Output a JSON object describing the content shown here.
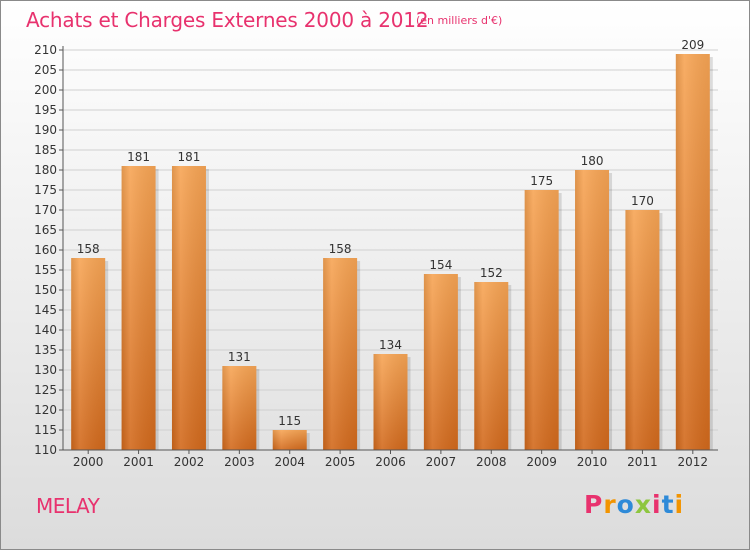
{
  "header": {
    "title": "Achats et Charges Externes 2000 à 2012",
    "unit": "(en milliers d'€)"
  },
  "footer": {
    "town": "MELAY",
    "logo": "Proxiti"
  },
  "colors": {
    "title": "#e8326e",
    "bar_light": "#f7a555",
    "bar_dark": "#d2691c",
    "grid": "#d0d0d0",
    "logo_letters": [
      "#e8326e",
      "#f29400",
      "#2e8ad8",
      "#8dc63f",
      "#e8326e",
      "#2e8ad8",
      "#f29400"
    ]
  },
  "chart_data": {
    "type": "bar",
    "title": "Achats et Charges Externes 2000 à 2012",
    "subtitle": "(en milliers d'€)",
    "xlabel": "",
    "ylabel": "",
    "categories": [
      "2000",
      "2001",
      "2002",
      "2003",
      "2004",
      "2005",
      "2006",
      "2007",
      "2008",
      "2009",
      "2010",
      "2011",
      "2012"
    ],
    "values": [
      158,
      181,
      181,
      131,
      115,
      158,
      134,
      154,
      152,
      175,
      180,
      170,
      209
    ],
    "ylim": [
      110,
      210
    ],
    "yticks": [
      110,
      115,
      120,
      125,
      130,
      135,
      140,
      145,
      150,
      155,
      160,
      165,
      170,
      175,
      180,
      185,
      190,
      195,
      200,
      205,
      210
    ],
    "grid": true,
    "data_labels": true,
    "legend": "none"
  }
}
